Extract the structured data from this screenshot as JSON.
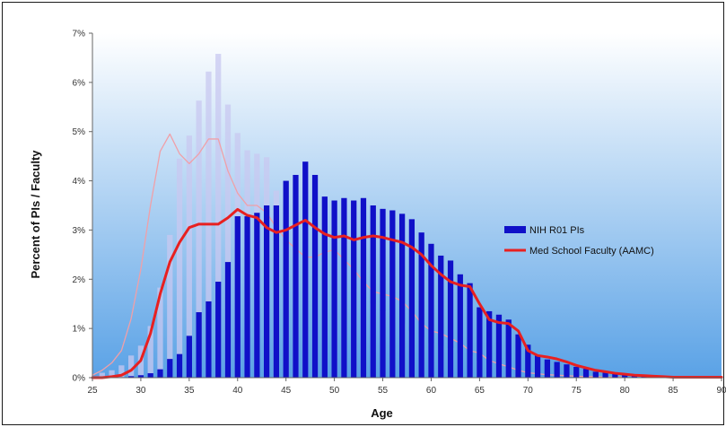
{
  "chart_data": {
    "type": "bar",
    "xlabel": "Age",
    "ylabel": "Percent of PIs / Faculty",
    "xlim": [
      25,
      90
    ],
    "ylim": [
      0,
      7
    ],
    "x_ticks": [
      "25",
      "30",
      "35",
      "40",
      "45",
      "50",
      "55",
      "60",
      "65",
      "70",
      "75",
      "80",
      "85",
      "90"
    ],
    "y_ticks": [
      "0%",
      "1%",
      "2%",
      "3%",
      "4%",
      "5%",
      "6%",
      "7%"
    ],
    "legend_position": "right",
    "background_gradient": [
      "#ffffff",
      "#5aa2e6"
    ],
    "series": [
      {
        "name": "NIH R01 PIs",
        "type": "bar",
        "color": "#1010c8",
        "x": [
          28,
          29,
          30,
          31,
          32,
          33,
          34,
          35,
          36,
          37,
          38,
          39,
          40,
          41,
          42,
          43,
          44,
          45,
          46,
          47,
          48,
          49,
          50,
          51,
          52,
          53,
          54,
          55,
          56,
          57,
          58,
          59,
          60,
          61,
          62,
          63,
          64,
          65,
          66,
          67,
          68,
          69,
          70,
          71,
          72,
          73,
          74,
          75,
          76,
          77,
          78,
          79,
          80,
          81,
          82,
          83,
          84,
          85,
          86,
          87,
          88,
          89
        ],
        "values": [
          0.01,
          0.03,
          0.05,
          0.09,
          0.17,
          0.38,
          0.48,
          0.85,
          1.33,
          1.55,
          1.95,
          2.35,
          3.28,
          3.28,
          3.35,
          3.5,
          3.5,
          4.0,
          4.12,
          4.39,
          4.12,
          3.68,
          3.6,
          3.65,
          3.6,
          3.65,
          3.5,
          3.43,
          3.4,
          3.33,
          3.22,
          2.95,
          2.72,
          2.48,
          2.38,
          2.1,
          1.92,
          1.43,
          1.35,
          1.28,
          1.18,
          0.88,
          0.67,
          0.45,
          0.37,
          0.32,
          0.27,
          0.22,
          0.18,
          0.12,
          0.1,
          0.08,
          0.07,
          0.05,
          0.04,
          0.03,
          0.02,
          0.02,
          0.01,
          0.01,
          0.01,
          0.01
        ]
      },
      {
        "name": "",
        "type": "bar",
        "color": "#c8c8f0",
        "x": [
          26,
          27,
          28,
          29,
          30,
          31,
          32,
          33,
          34,
          35,
          36,
          37,
          38,
          39,
          40,
          41,
          42,
          43,
          44,
          45,
          46,
          47,
          48,
          49,
          50,
          51,
          52,
          53,
          54,
          55,
          56,
          57,
          58,
          59,
          60,
          61,
          62,
          63,
          64,
          65,
          66,
          67,
          68,
          69,
          70
        ],
        "values": [
          0.1,
          0.15,
          0.25,
          0.45,
          0.65,
          1.05,
          1.83,
          2.9,
          4.45,
          4.92,
          5.63,
          6.22,
          6.58,
          5.55,
          4.97,
          4.62,
          4.55,
          4.48,
          3.8,
          3.32,
          3.05,
          2.55,
          2.4,
          2.35,
          2.3,
          2.2,
          1.8,
          1.6,
          1.5,
          1.35,
          1.38,
          1.1,
          0.95,
          0.82,
          0.7,
          0.65,
          0.6,
          0.5,
          0.45,
          0.35,
          0.3,
          0.25,
          0.2,
          0.15,
          0.1
        ]
      },
      {
        "name": "Med School Faculty (AAMC)",
        "type": "line",
        "color": "#e82020",
        "x": [
          25,
          26,
          27,
          28,
          29,
          30,
          31,
          32,
          33,
          34,
          35,
          36,
          37,
          38,
          39,
          40,
          41,
          42,
          43,
          44,
          45,
          46,
          47,
          48,
          49,
          50,
          51,
          52,
          53,
          54,
          55,
          56,
          57,
          58,
          59,
          60,
          61,
          62,
          63,
          64,
          65,
          66,
          67,
          68,
          69,
          70,
          71,
          72,
          73,
          74,
          75,
          76,
          77,
          78,
          79,
          80,
          81,
          82,
          83,
          84,
          85,
          86,
          87,
          88,
          89,
          90
        ],
        "values": [
          0,
          0,
          0.02,
          0.05,
          0.15,
          0.35,
          0.9,
          1.7,
          2.35,
          2.75,
          3.05,
          3.12,
          3.12,
          3.12,
          3.25,
          3.42,
          3.3,
          3.25,
          3.05,
          2.95,
          3.0,
          3.1,
          3.2,
          3.05,
          2.92,
          2.85,
          2.88,
          2.8,
          2.85,
          2.88,
          2.85,
          2.8,
          2.75,
          2.65,
          2.5,
          2.28,
          2.1,
          1.95,
          1.88,
          1.85,
          1.5,
          1.18,
          1.12,
          1.1,
          0.95,
          0.55,
          0.45,
          0.42,
          0.38,
          0.32,
          0.25,
          0.2,
          0.15,
          0.12,
          0.09,
          0.07,
          0.05,
          0.04,
          0.03,
          0.02,
          0.01,
          0.01,
          0.01,
          0.01,
          0.01,
          0.01
        ]
      },
      {
        "name": "",
        "type": "line",
        "color": "#f0a0a8",
        "x": [
          25,
          26,
          27,
          28,
          29,
          30,
          31,
          32,
          33,
          34,
          35,
          36,
          37,
          38,
          39,
          40,
          41,
          42,
          43,
          44,
          45,
          46,
          47,
          48,
          49,
          50,
          51,
          52,
          53,
          54,
          55,
          56,
          57,
          58,
          59,
          60,
          61,
          62,
          63,
          64,
          65,
          66,
          67,
          68,
          69,
          70,
          71,
          72,
          73,
          74,
          75,
          76,
          77,
          78,
          79,
          80
        ],
        "values": [
          0.05,
          0.15,
          0.3,
          0.55,
          1.2,
          2.2,
          3.5,
          4.6,
          4.95,
          4.55,
          4.35,
          4.55,
          4.85,
          4.85,
          4.2,
          3.75,
          3.5,
          3.5,
          3.35,
          3.05,
          2.8,
          2.62,
          2.45,
          2.45,
          2.55,
          2.6,
          2.4,
          2.2,
          1.95,
          1.75,
          1.7,
          1.65,
          1.55,
          1.35,
          1.1,
          0.95,
          0.9,
          0.8,
          0.7,
          0.55,
          0.5,
          0.35,
          0.28,
          0.22,
          0.15,
          0.1,
          0.08,
          0.06,
          0.05,
          0.04,
          0.03,
          0.02,
          0.02,
          0.01,
          0.01,
          0.01
        ]
      }
    ]
  }
}
